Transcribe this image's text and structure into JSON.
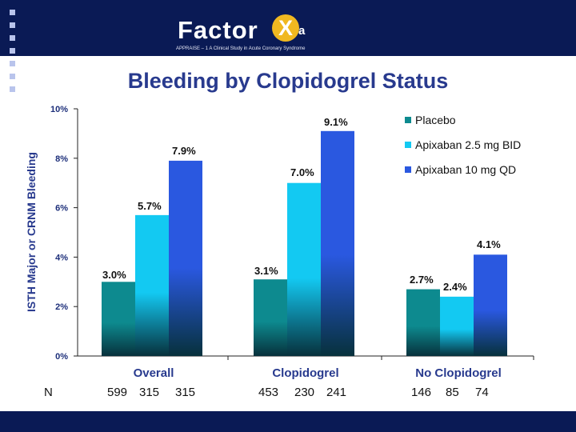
{
  "header": {
    "logo_text": "Factor",
    "logo_x": "X",
    "logo_sub": "a",
    "subtitle": "APPRAISE – 1   A Clinical Study in Acute Coronary Syndrome"
  },
  "colors": {
    "background": "#ffffff",
    "header_band": "#0a1a55",
    "title": "#283a8e",
    "logo_accent": "#f0b820"
  },
  "chart_data": {
    "type": "bar",
    "title": "Bleeding by Clopidogrel Status",
    "ylabel": "ISTH Major or CRNM Bleeding",
    "xlabel": "",
    "ylim": [
      0,
      10
    ],
    "yticks": [
      0,
      2,
      4,
      6,
      8,
      10
    ],
    "ytick_suffix": "%",
    "categories": [
      "Overall",
      "Clopidogrel",
      "No Clopidogrel"
    ],
    "series": [
      {
        "name": "Placebo",
        "color": "#0d8a8f",
        "values": [
          3.0,
          3.1,
          2.7
        ]
      },
      {
        "name": "Apixaban 2.5 mg BID",
        "color": "#13c9f2",
        "values": [
          5.7,
          7.0,
          2.4
        ]
      },
      {
        "name": "Apixaban 10 mg QD",
        "color": "#2a58e0",
        "values": [
          7.9,
          9.1,
          4.1
        ]
      }
    ],
    "data_labels": [
      [
        "3.0%",
        "5.7%",
        "7.9%"
      ],
      [
        "3.1%",
        "7.0%",
        "9.1%"
      ],
      [
        "2.7%",
        "2.4%",
        "4.1%"
      ]
    ],
    "n_label": "N",
    "n_values": [
      [
        "599",
        "315",
        "315"
      ],
      [
        "453",
        "230",
        "241"
      ],
      [
        "146",
        "85",
        "74"
      ]
    ],
    "legend_position": "top-right",
    "grid": false
  }
}
